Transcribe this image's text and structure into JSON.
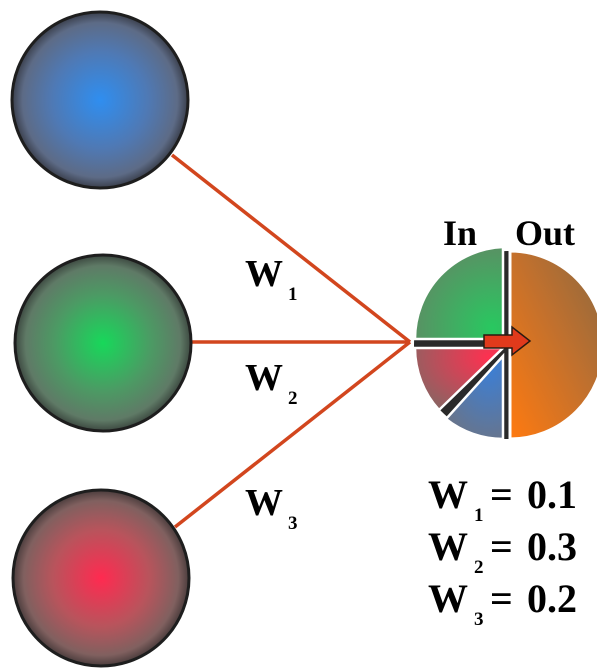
{
  "colors": {
    "background": "#ffffff",
    "connection_line": "#d2461e",
    "node_outline": "#1e1e1e",
    "input_blue": "#2f8ef0",
    "input_green": "#17d85a",
    "input_red": "#ff2a50",
    "output_orange": "#ff7a10",
    "arrow": "#e03a1c"
  },
  "inputs": [
    {
      "id": "blue",
      "icon": "blue-input-neuron"
    },
    {
      "id": "green",
      "icon": "green-input-neuron"
    },
    {
      "id": "red",
      "icon": "red-input-neuron"
    }
  ],
  "edge_labels": [
    {
      "letter": "W",
      "subscript": "1"
    },
    {
      "letter": "W",
      "subscript": "2"
    },
    {
      "letter": "W",
      "subscript": "3"
    }
  ],
  "output_node": {
    "in_label": "In",
    "out_label": "Out",
    "icon": "arrow-right-icon"
  },
  "weights": [
    {
      "letter": "W",
      "subscript": "1",
      "equals": "=",
      "value": "0.1"
    },
    {
      "letter": "W",
      "subscript": "2",
      "equals": "=",
      "value": "0.3"
    },
    {
      "letter": "W",
      "subscript": "3",
      "equals": "=",
      "value": "0.2"
    }
  ]
}
